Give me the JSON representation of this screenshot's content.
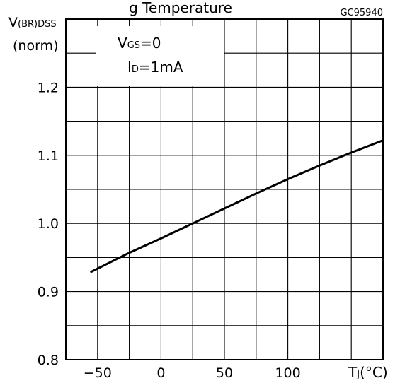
{
  "header": {
    "partial_title": "g Temperature"
  },
  "figure_code": "GC95940",
  "chart_data": {
    "type": "line",
    "title": "",
    "ylabel_main": "V",
    "ylabel_sub": "(BR)DSS",
    "ylabel_unit": "(norm)",
    "xlabel_main": "T",
    "xlabel_sub": "J",
    "xlabel_unit": "(°C)",
    "xlim": [
      -75,
      175
    ],
    "ylim": [
      0.8,
      1.3
    ],
    "x_ticks": [
      -50,
      0,
      50,
      100
    ],
    "x_tick_labels": [
      "−50",
      "0",
      "50",
      "100"
    ],
    "y_ticks": [
      0.8,
      0.9,
      1.0,
      1.1,
      1.2
    ],
    "y_tick_labels": [
      "0.8",
      "0.9",
      "1.0",
      "1.1",
      "1.2"
    ],
    "grid": true,
    "conditions": {
      "vgs": {
        "main": "V",
        "sub": "GS",
        "value": "=0"
      },
      "id": {
        "main": "I",
        "sub": "D",
        "value": "=1mA"
      }
    },
    "series": [
      {
        "x": [
          -55,
          -25,
          0,
          25,
          50,
          75,
          100,
          125,
          150,
          175
        ],
        "y": [
          0.929,
          0.957,
          0.978,
          1.0,
          1.022,
          1.044,
          1.065,
          1.085,
          1.104,
          1.122
        ]
      }
    ]
  }
}
